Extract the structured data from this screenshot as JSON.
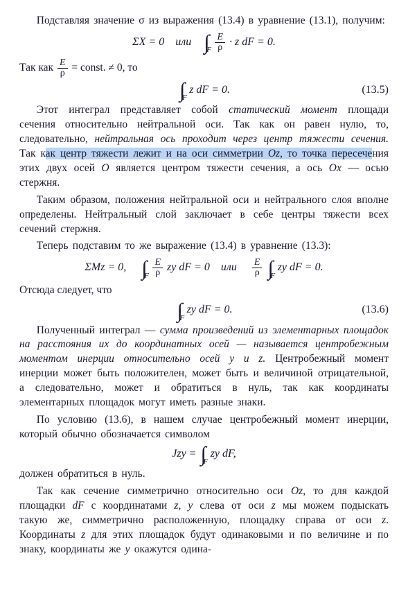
{
  "para1": "Подставляя значение σ из выражения (13.4) в уравнение (13.1), получим:",
  "eq1_a": "ΣX = 0 или",
  "eq1_int_lim": "F",
  "eq1_frac_num": "E",
  "eq1_frac_den": "ρ",
  "eq1_tail": "· z dF = 0.",
  "para2_a": "Так как ",
  "para2_frac_num": "E",
  "para2_frac_den": "ρ",
  "para2_b": " = const. ≠ 0, то",
  "eq2_lim": "F",
  "eq2_body": "z dF = 0.",
  "eq2_tag": "(13.5)",
  "para3_a": "Этот интеграл представляет собой ",
  "para3_b": "статический момент",
  "para3_c": " площади сечения относительно нейтральной оси. Так как он равен нулю, то, следовательно, ",
  "para3_d": "нейтральная ось проходит через центр тяжести сечения.",
  "para3_e": " Так к",
  "para3_hl1": "ак центр тяжести лежит и на оси симметрии ",
  "para3_hl_oz": "Oz",
  "para3_hl2": ", то точка пересече",
  "para3_f": "ния этих двух осей ",
  "para3_O": "O",
  "para3_g": " является центром тяжести сечения, а ось ",
  "para3_Ox": "Ox",
  "para3_h": " — осью стержня.",
  "para4": "Таким образом, положения нейтральной оси и нейтрального слоя вполне определены. Нейтральный слой заключает в себе центры тяжести всех сечений стержня.",
  "para5": "Теперь подставим то же выражение (13.4) в уравнение (13.3):",
  "eq3_a": "ΣMz = 0, ",
  "eq3_lim": "F",
  "eq3_frac_num": "E",
  "eq3_frac_den": "ρ",
  "eq3_mid": " zy dF = 0 или ",
  "eq3_frac2_num": "E",
  "eq3_frac2_den": "ρ",
  "eq3_lim2": "F",
  "eq3_tail": " zy dF = 0.",
  "para6": "Отсюда следует, что",
  "eq4_lim": "F",
  "eq4_body": "zy dF = 0.",
  "eq4_tag": "(13.6)",
  "para7_a": "Полученный интеграл — ",
  "para7_b": "сумма произведений из элементарных площадок на расстояния их до координатных осей — называется центробежным моментом инерции относительно осей y и z.",
  "para7_c": " Центробежный момент инерции может быть положителен, может быть и величиной отрицательной, а следовательно, может и обратиться в нуль, так как координаты элементарных площадок могут иметь разные знаки.",
  "para8": "По условию (13.6), в нашем случае центробежный момент инерции, который обычно обозначается символом",
  "eq5_a": "Jzy =",
  "eq5_lim": "F",
  "eq5_body": " zy dF,",
  "para9": "должен обратиться в нуль.",
  "para10_a": "Так как сечение симметрично относительно оси ",
  "para10_Oz": "Oz",
  "para10_b": ", то для каждой площадки ",
  "para10_dF": "dF",
  "para10_c": " с координатами ",
  "para10_z": "z",
  "para10_d": ", ",
  "para10_y": "y",
  "para10_e": " слева от оси ",
  "para10_z2": "z",
  "para10_f": " мы можем подыскать такую же, симметрично расположенную, площадку справа от оси ",
  "para10_z3": "z",
  "para10_g": ". Координаты ",
  "para10_z4": "z",
  "para10_h": " для этих площадок будут одинаковыми и по величине и по знаку, координаты же ",
  "para10_y2": "y",
  "para10_i": " окажутся одина-"
}
